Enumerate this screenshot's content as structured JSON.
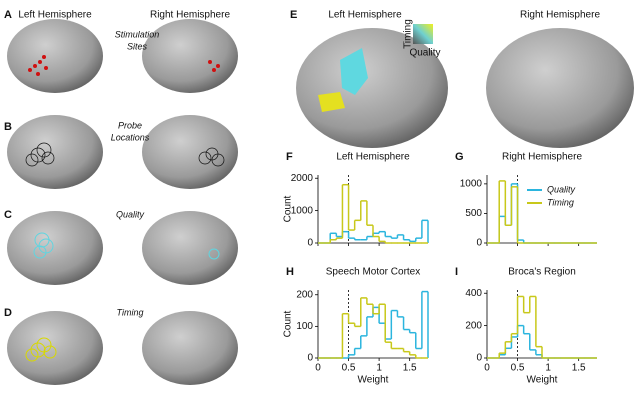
{
  "panels": {
    "A": "A",
    "B": "B",
    "C": "C",
    "D": "D",
    "E": "E"
  },
  "brain_headers": {
    "left": "Left Hemisphere",
    "right": "Right Hemisphere"
  },
  "annotations": {
    "stimulation": [
      "Stimulation",
      "Sites"
    ],
    "probe": [
      "Probe",
      "Locations"
    ],
    "quality": "Quality",
    "timing": "Timing"
  },
  "panel_e": {
    "left": "Left Hemisphere",
    "right": "Right Hemisphere",
    "colorbar_y": "Timing",
    "colorbar_x": "Quality"
  },
  "chart_data": [
    {
      "type": "histogram",
      "panel": "F",
      "title": "Left Hemisphere",
      "ylabel": "Count",
      "show_xtick_labels": false,
      "legend": false,
      "bins": [
        0,
        0.1,
        0.2,
        0.3,
        0.4,
        0.5,
        0.6,
        0.7,
        0.8,
        0.9,
        1,
        1.1,
        1.2,
        1.3,
        1.4,
        1.5,
        1.6,
        1.7,
        1.8
      ],
      "series": [
        {
          "name": "Quality",
          "color": "#2bb5de",
          "values": [
            0,
            0,
            300,
            200,
            350,
            150,
            100,
            100,
            200,
            300,
            350,
            200,
            150,
            250,
            100,
            50,
            150,
            700
          ]
        },
        {
          "name": "Timing",
          "color": "#c8c81a",
          "values": [
            0,
            0,
            100,
            150,
            1800,
            400,
            700,
            1300,
            550,
            200,
            50,
            0,
            0,
            0,
            0,
            0,
            0,
            0
          ]
        }
      ],
      "xlim": [
        0,
        1.8
      ],
      "xticks": [
        0,
        0.5,
        1,
        1.5
      ],
      "ylim": [
        0,
        2100
      ],
      "yticks": [
        0,
        1000,
        2000
      ],
      "vline": 0.5
    },
    {
      "type": "histogram",
      "panel": "G",
      "title": "Right Hemisphere",
      "show_xtick_labels": false,
      "legend": true,
      "bins": [
        0,
        0.1,
        0.2,
        0.3,
        0.4,
        0.5,
        0.6,
        0.7,
        0.8,
        0.9,
        1,
        1.1,
        1.2,
        1.3,
        1.4,
        1.5,
        1.6,
        1.7,
        1.8
      ],
      "series": [
        {
          "name": "Quality",
          "color": "#2bb5de",
          "values": [
            0,
            0,
            450,
            300,
            1000,
            50,
            0,
            0,
            0,
            0,
            0,
            0,
            0,
            0,
            0,
            0,
            0,
            0
          ]
        },
        {
          "name": "Timing",
          "color": "#c8c81a",
          "values": [
            0,
            0,
            1050,
            300,
            950,
            0,
            0,
            0,
            0,
            0,
            0,
            0,
            0,
            0,
            0,
            0,
            0,
            0
          ]
        }
      ],
      "xlim": [
        0,
        1.8
      ],
      "xticks": [
        0,
        0.5,
        1,
        1.5
      ],
      "ylim": [
        0,
        1150
      ],
      "yticks": [
        0,
        500,
        1000
      ],
      "vline": 0.5
    },
    {
      "type": "histogram",
      "panel": "H",
      "title": "Speech Motor Cortex",
      "ylabel": "Count",
      "xlabel": "Weight",
      "show_xtick_labels": true,
      "legend": false,
      "bins": [
        0,
        0.1,
        0.2,
        0.3,
        0.4,
        0.5,
        0.6,
        0.7,
        0.8,
        0.9,
        1,
        1.1,
        1.2,
        1.3,
        1.4,
        1.5,
        1.6,
        1.7,
        1.8
      ],
      "series": [
        {
          "name": "Quality",
          "color": "#2bb5de",
          "values": [
            0,
            0,
            0,
            0,
            0,
            10,
            30,
            70,
            130,
            160,
            110,
            60,
            150,
            130,
            90,
            80,
            30,
            210
          ]
        },
        {
          "name": "Timing",
          "color": "#c8c81a",
          "values": [
            0,
            0,
            0,
            0,
            140,
            110,
            100,
            190,
            170,
            140,
            170,
            50,
            30,
            30,
            20,
            10,
            0,
            0
          ]
        }
      ],
      "xlim": [
        0,
        1.8
      ],
      "xticks": [
        0,
        0.5,
        1,
        1.5
      ],
      "ylim": [
        0,
        215
      ],
      "yticks": [
        0,
        100,
        200
      ],
      "vline": 0.5
    },
    {
      "type": "histogram",
      "panel": "I",
      "title": "Broca's Region",
      "xlabel": "Weight",
      "show_xtick_labels": true,
      "legend": false,
      "bins": [
        0,
        0.1,
        0.2,
        0.3,
        0.4,
        0.5,
        0.6,
        0.7,
        0.8,
        0.9,
        1,
        1.1,
        1.2,
        1.3,
        1.4,
        1.5,
        1.6,
        1.7,
        1.8
      ],
      "series": [
        {
          "name": "Quality",
          "color": "#2bb5de",
          "values": [
            0,
            0,
            20,
            60,
            130,
            200,
            150,
            50,
            20,
            0,
            0,
            0,
            0,
            0,
            0,
            0,
            0,
            0
          ]
        },
        {
          "name": "Timing",
          "color": "#c8c81a",
          "values": [
            0,
            0,
            30,
            100,
            150,
            380,
            280,
            380,
            70,
            0,
            0,
            0,
            0,
            0,
            0,
            0,
            0,
            0
          ]
        }
      ],
      "xlim": [
        0,
        1.8
      ],
      "xticks": [
        0,
        0.5,
        1,
        1.5
      ],
      "ylim": [
        0,
        420
      ],
      "yticks": [
        0,
        200,
        400
      ],
      "vline": 0.5
    }
  ]
}
